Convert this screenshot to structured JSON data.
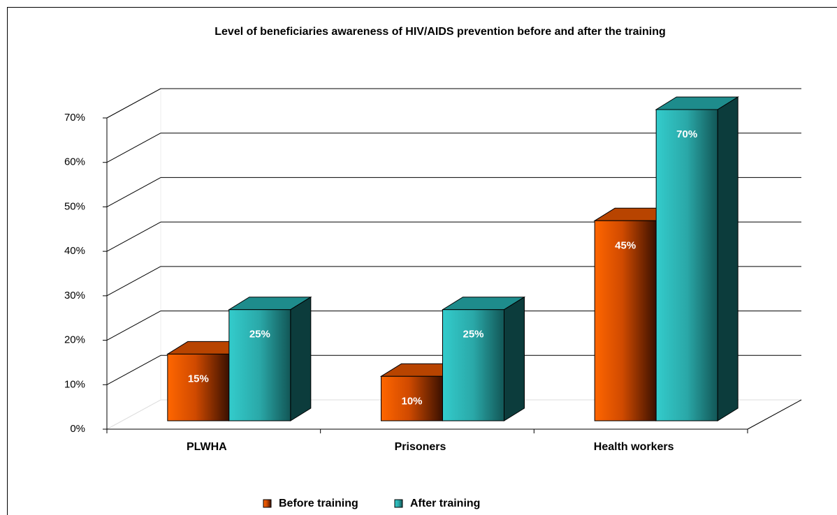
{
  "chart_data": {
    "type": "bar3d",
    "title": "Level of beneficiaries awareness of HIV/AIDS prevention before and after the training",
    "categories": [
      "PLWHA",
      "Prisoners",
      "Health workers"
    ],
    "series": [
      {
        "name": "Before training",
        "color": "#ff6600",
        "values": [
          15,
          10,
          45
        ],
        "value_labels": [
          "15%",
          "10%",
          "45%"
        ]
      },
      {
        "name": "After training",
        "color": "#33cccc",
        "values": [
          25,
          25,
          70
        ],
        "value_labels": [
          "25%",
          "25%",
          "70%"
        ]
      }
    ],
    "ylim": [
      0,
      70
    ],
    "yticks": [
      {
        "value": 0,
        "label": "0%"
      },
      {
        "value": 10,
        "label": "10%"
      },
      {
        "value": 20,
        "label": "20%"
      },
      {
        "value": 30,
        "label": "30%"
      },
      {
        "value": 40,
        "label": "40%"
      },
      {
        "value": 50,
        "label": "50%"
      },
      {
        "value": 60,
        "label": "60%"
      },
      {
        "value": 70,
        "label": "70%"
      }
    ],
    "grid": true,
    "legend": "bottom"
  }
}
